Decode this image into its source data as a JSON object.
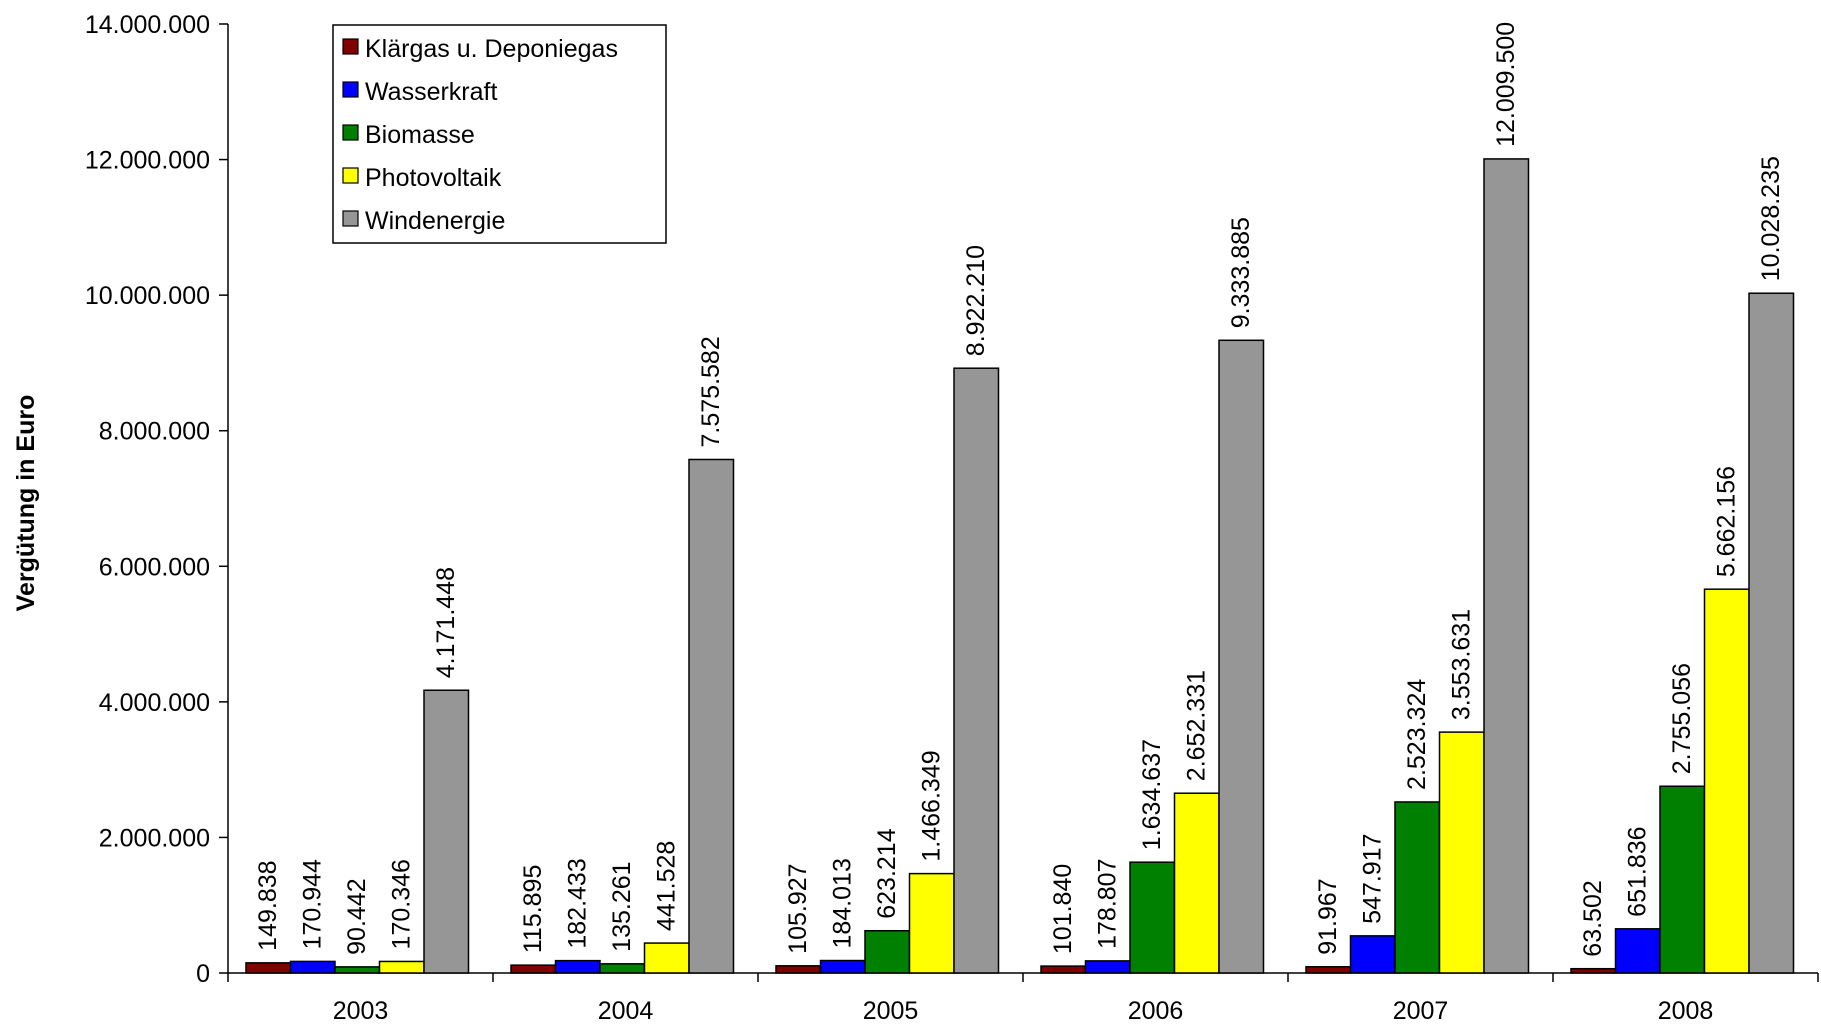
{
  "chart_data": {
    "type": "bar",
    "title": "",
    "xlabel": "",
    "ylabel": "Vergütung in Euro",
    "ylim": [
      0,
      14000000
    ],
    "yticks": [
      0,
      2000000,
      4000000,
      6000000,
      8000000,
      10000000,
      12000000,
      14000000
    ],
    "ytick_labels": [
      "0",
      "2.000.000",
      "4.000.000",
      "6.000.000",
      "8.000.000",
      "10.000.000",
      "12.000.000",
      "14.000.000"
    ],
    "categories": [
      "2003",
      "2004",
      "2005",
      "2006",
      "2007",
      "2008"
    ],
    "grid": false,
    "legend_position": "top-left",
    "series": [
      {
        "name": "Klärgas u. Deponiegas",
        "color": "#800000",
        "values": [
          149838,
          115895,
          105927,
          101840,
          91967,
          63502
        ],
        "labels": [
          "149.838",
          "115.895",
          "105.927",
          "101.840",
          "91.967",
          "63.502"
        ]
      },
      {
        "name": "Wasserkraft",
        "color": "#0000ff",
        "values": [
          170944,
          182433,
          184013,
          178807,
          547917,
          651836
        ],
        "labels": [
          "170.944",
          "182.433",
          "184.013",
          "178.807",
          "547.917",
          "651.836"
        ]
      },
      {
        "name": "Biomasse",
        "color": "#008000",
        "values": [
          90442,
          135261,
          623214,
          1634637,
          2523324,
          2755056
        ],
        "labels": [
          "90.442",
          "135.261",
          "623.214",
          "1.634.637",
          "2.523.324",
          "2.755.056"
        ]
      },
      {
        "name": "Photovoltaik",
        "color": "#ffff00",
        "values": [
          170346,
          441528,
          1466349,
          2652331,
          3553631,
          5662156
        ],
        "labels": [
          "170.346",
          "441.528",
          "1.466.349",
          "2.652.331",
          "3.553.631",
          "5.662.156"
        ]
      },
      {
        "name": "Windenergie",
        "color": "#969696",
        "values": [
          4171448,
          7575582,
          8922210,
          9333885,
          12009500,
          10028235
        ],
        "labels": [
          "4.171.448",
          "7.575.582",
          "8.922.210",
          "9.333.885",
          "12.009.500",
          "10.028.235"
        ]
      }
    ]
  }
}
